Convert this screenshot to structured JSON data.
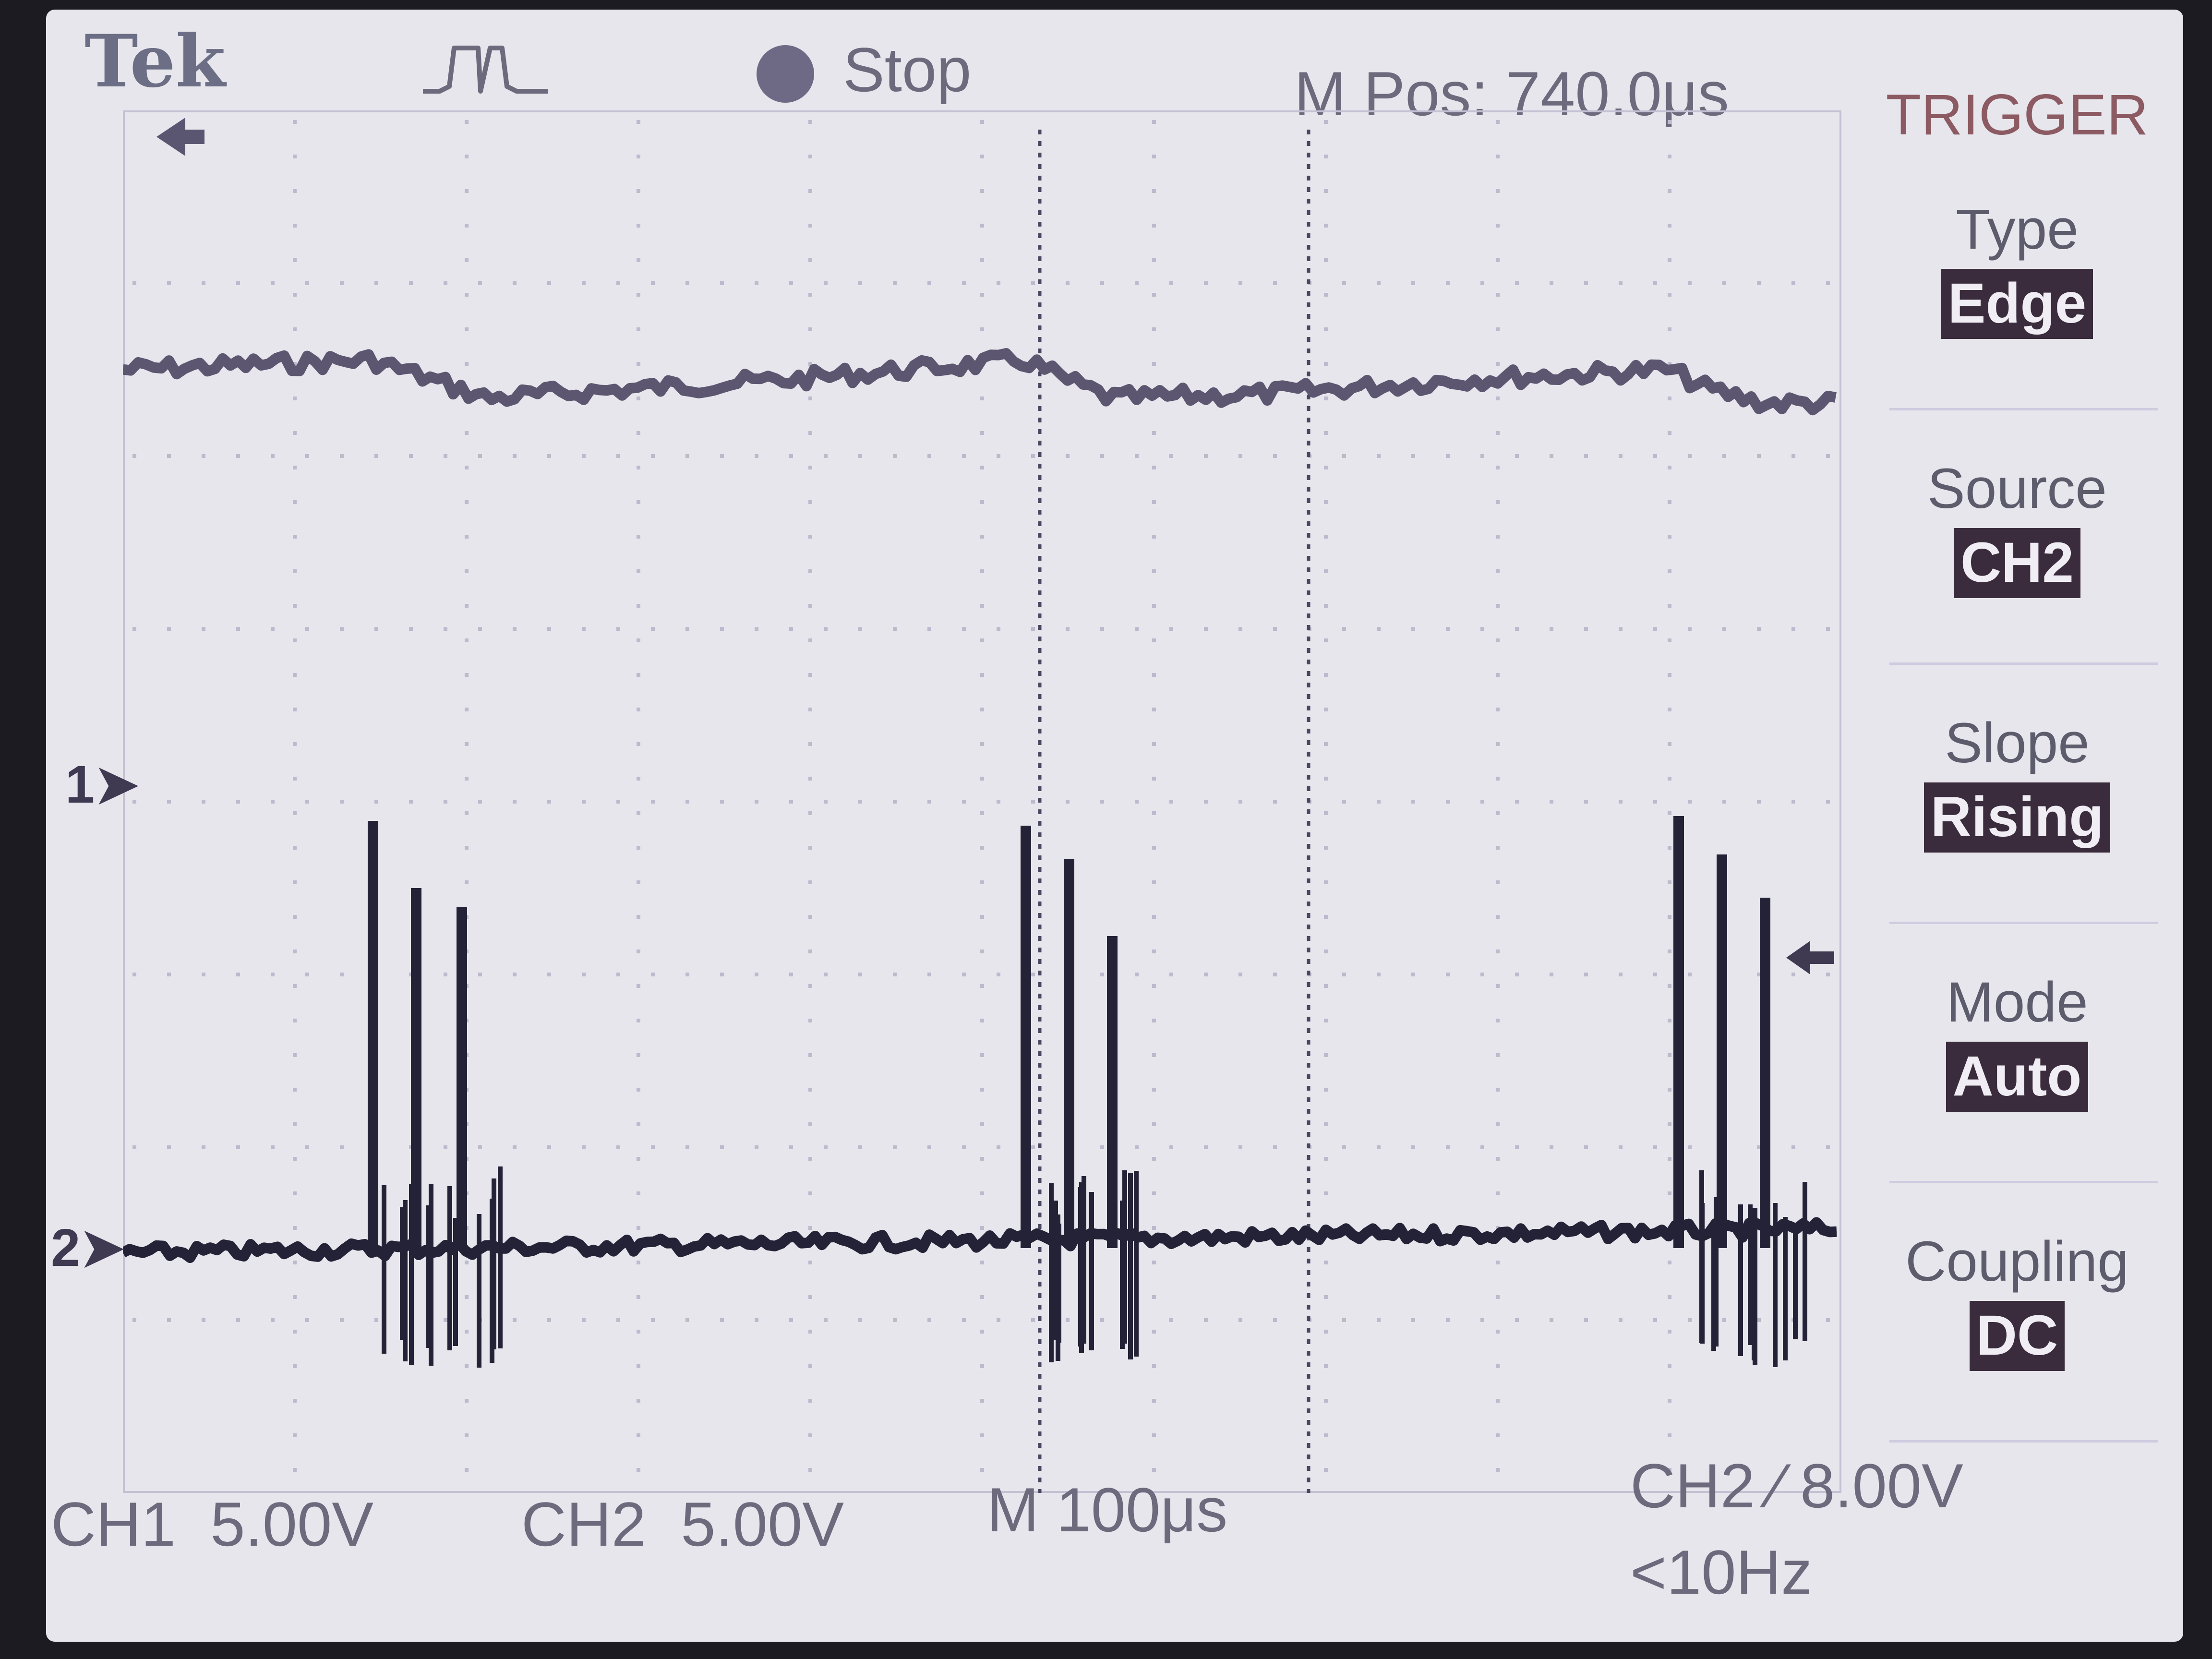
{
  "brand": "Tek",
  "acquisition": {
    "status": "Stop"
  },
  "horizontal": {
    "position": "M Pos: 740.0μs",
    "timebase": "M 100μs"
  },
  "channels": {
    "ch1": {
      "label": "CH1",
      "scale": "5.00V",
      "marker": "1"
    },
    "ch2": {
      "label": "CH2",
      "scale": "5.00V",
      "marker": "2"
    }
  },
  "trigger_readout": {
    "source": "CH2",
    "slope_symbol": "∕",
    "level": "8.00V",
    "frequency": "<10Hz"
  },
  "menu": {
    "title": "TRIGGER",
    "items": [
      {
        "label": "Type",
        "value": "Edge"
      },
      {
        "label": "Source",
        "value": "CH2"
      },
      {
        "label": "Slope",
        "value": "Rising"
      },
      {
        "label": "Mode",
        "value": "Auto"
      },
      {
        "label": "Coupling",
        "value": "DC"
      }
    ]
  },
  "colors": {
    "trace_ch1": "#5c5670",
    "trace_ch2": "#242236",
    "graticule": "#bdbacd",
    "cursor": "#4a4760",
    "screen": "#e7e6ec"
  }
}
